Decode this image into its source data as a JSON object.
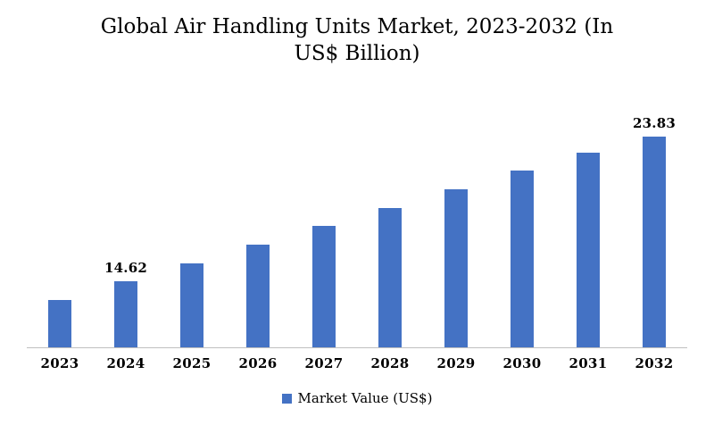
{
  "header": {
    "title_line1": "Global Air Handling Units Market, 2023-2032 (In",
    "title_line2": "US$ Billion)"
  },
  "legend": {
    "label": "Market Value (US$)",
    "swatch_color": "#4472c4"
  },
  "chart_data": {
    "type": "bar",
    "title": "Global Air Handling Units Market, 2023-2032 (In US$ Billion)",
    "categories": [
      "2023",
      "2024",
      "2025",
      "2026",
      "2027",
      "2028",
      "2029",
      "2030",
      "2031",
      "2032"
    ],
    "values": [
      13.47,
      14.62,
      15.77,
      16.92,
      18.07,
      19.22,
      20.37,
      21.52,
      22.68,
      23.83
    ],
    "data_labels": [
      "",
      "14.62",
      "",
      "",
      "",
      "",
      "",
      "",
      "",
      "23.83"
    ],
    "series": [
      {
        "name": "Market Value (US$)",
        "values": [
          13.47,
          14.62,
          15.77,
          16.92,
          18.07,
          19.22,
          20.37,
          21.52,
          22.68,
          23.83
        ]
      }
    ],
    "xlabel": "",
    "ylabel": "",
    "ylim": [
      10.5,
      25
    ],
    "bar_color": "#4472c4",
    "axis_line_color": "#bfbfbf",
    "gridlines": false,
    "y_axis_visible": false,
    "legend_position": "bottom"
  }
}
